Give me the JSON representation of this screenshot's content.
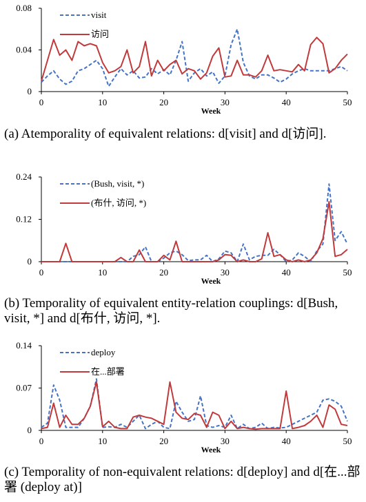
{
  "colors": {
    "blue": "#4472c4",
    "red": "#c0393b",
    "axis": "#000000"
  },
  "captions": [
    "(a) Atemporality of equivalent relations: d[visit] and d[访问].",
    "(b) Temporality of equivalent entity-relation couplings: d[Bush, visit, *] and d[布什, 访问, *].",
    "(c) Temporality of non-equivalent relations: d[deploy] and d[在...部署 (deploy at)]"
  ],
  "chart_data": [
    {
      "type": "line",
      "xlabel": "Week",
      "xlim": [
        0,
        50
      ],
      "ylim": [
        0,
        0.08
      ],
      "xticks": [
        0,
        10,
        20,
        30,
        40,
        50
      ],
      "yticks": [
        0,
        0.04,
        0.08
      ],
      "ytick_labels": [
        "0",
        "0.04",
        "0.08"
      ],
      "legend_position": "top-left",
      "series": [
        {
          "name": "visit",
          "color": "#4472c4",
          "style": "dashed",
          "values": [
            0.009,
            0.015,
            0.02,
            0.012,
            0.007,
            0.01,
            0.02,
            0.022,
            0.026,
            0.03,
            0.022,
            0.005,
            0.014,
            0.022,
            0.016,
            0.02,
            0.013,
            0.014,
            0.022,
            0.017,
            0.021,
            0.016,
            0.03,
            0.048,
            0.01,
            0.018,
            0.022,
            0.015,
            0.019,
            0.008,
            0.015,
            0.045,
            0.06,
            0.028,
            0.015,
            0.012,
            0.016,
            0.016,
            0.013,
            0.009,
            0.012,
            0.017,
            0.02,
            0.022,
            0.02,
            0.02,
            0.02,
            0.02,
            0.022,
            0.024,
            0.02
          ]
        },
        {
          "name": "访问",
          "color": "#c0393b",
          "style": "solid",
          "values": [
            0.01,
            0.03,
            0.05,
            0.035,
            0.04,
            0.03,
            0.048,
            0.044,
            0.046,
            0.044,
            0.028,
            0.018,
            0.02,
            0.024,
            0.04,
            0.018,
            0.024,
            0.048,
            0.015,
            0.03,
            0.02,
            0.026,
            0.03,
            0.017,
            0.022,
            0.02,
            0.012,
            0.018,
            0.034,
            0.042,
            0.014,
            0.015,
            0.03,
            0.016,
            0.016,
            0.014,
            0.02,
            0.035,
            0.02,
            0.021,
            0.02,
            0.019,
            0.026,
            0.02,
            0.045,
            0.052,
            0.046,
            0.018,
            0.022,
            0.03,
            0.036
          ]
        }
      ]
    },
    {
      "type": "line",
      "xlabel": "Week",
      "xlim": [
        0,
        50
      ],
      "ylim": [
        0,
        0.24
      ],
      "xticks": [
        0,
        10,
        20,
        30,
        40,
        50
      ],
      "yticks": [
        0,
        0.12,
        0.24
      ],
      "ytick_labels": [
        "0",
        "0.12",
        "0.24"
      ],
      "legend_position": "top-left",
      "series": [
        {
          "name": "(Bush, visit, *)",
          "color": "#4472c4",
          "style": "dashed",
          "values": [
            0,
            0,
            0,
            0,
            0,
            0,
            0,
            0,
            0,
            0,
            0,
            0,
            0,
            0,
            0,
            0.015,
            0.02,
            0.042,
            0,
            0,
            0.01,
            0.025,
            0.03,
            0.02,
            0.003,
            0.005,
            0.005,
            0.018,
            0,
            0.008,
            0.03,
            0.025,
            0,
            0.05,
            0.005,
            0.015,
            0.018,
            0.018,
            0.035,
            0.02,
            0,
            0.005,
            0.025,
            0.015,
            0,
            0.03,
            0.05,
            0.22,
            0.06,
            0.085,
            0.05
          ]
        },
        {
          "name": "(布什, 访问, *)",
          "color": "#c0393b",
          "style": "solid",
          "values": [
            0,
            0,
            0,
            0,
            0.052,
            0,
            0,
            0,
            0,
            0,
            0,
            0,
            0,
            0.012,
            0,
            0,
            0.033,
            0,
            0,
            0,
            0.018,
            0.005,
            0.058,
            0,
            0,
            0,
            0,
            0,
            0,
            0.005,
            0.02,
            0.018,
            0,
            0.005,
            0,
            0,
            0.008,
            0.082,
            0.015,
            0.02,
            0.005,
            0,
            0.005,
            0,
            0.005,
            0.025,
            0.065,
            0.17,
            0.015,
            0.02,
            0.035
          ]
        }
      ]
    },
    {
      "type": "line",
      "xlabel": "Week",
      "xlim": [
        0,
        50
      ],
      "ylim": [
        0,
        0.14
      ],
      "xticks": [
        0,
        10,
        20,
        30,
        40,
        50
      ],
      "yticks": [
        0,
        0.07,
        0.14
      ],
      "ytick_labels": [
        "0",
        "0.07",
        "0.14"
      ],
      "legend_position": "top-left",
      "series": [
        {
          "name": "deploy",
          "color": "#4472c4",
          "style": "dashed",
          "values": [
            0.005,
            0.012,
            0.075,
            0.05,
            0.005,
            0.005,
            0.005,
            0.02,
            0.04,
            0.085,
            0.005,
            0.006,
            0.005,
            0.01,
            0.005,
            0.015,
            0.025,
            0.003,
            0.01,
            0.015,
            0.005,
            0.003,
            0.048,
            0.03,
            0.015,
            0.018,
            0.057,
            0.008,
            0.005,
            0.008,
            0.005,
            0.025,
            0.003,
            0.01,
            0.003,
            0.005,
            0.012,
            0.003,
            0.005,
            0.004,
            0.005,
            0.01,
            0.015,
            0.02,
            0.025,
            0.03,
            0.05,
            0.052,
            0.048,
            0.04,
            0.015
          ]
        },
        {
          "name": "在...部署",
          "color": "#c0393b",
          "style": "solid",
          "values": [
            0.003,
            0.005,
            0.045,
            0.005,
            0.025,
            0.01,
            0.01,
            0.02,
            0.04,
            0.08,
            0.006,
            0.015,
            0.005,
            0.003,
            0.003,
            0.022,
            0.025,
            0.022,
            0.02,
            0.015,
            0.01,
            0.08,
            0.03,
            0.02,
            0.018,
            0.028,
            0.025,
            0.005,
            0.03,
            0.025,
            0.003,
            0.015,
            0.003,
            0.005,
            0.003,
            0.002,
            0.003,
            0.003,
            0.003,
            0.003,
            0.065,
            0.003,
            0.005,
            0.008,
            0.015,
            0.025,
            0.005,
            0.042,
            0.035,
            0.01,
            0.008
          ]
        }
      ]
    }
  ]
}
